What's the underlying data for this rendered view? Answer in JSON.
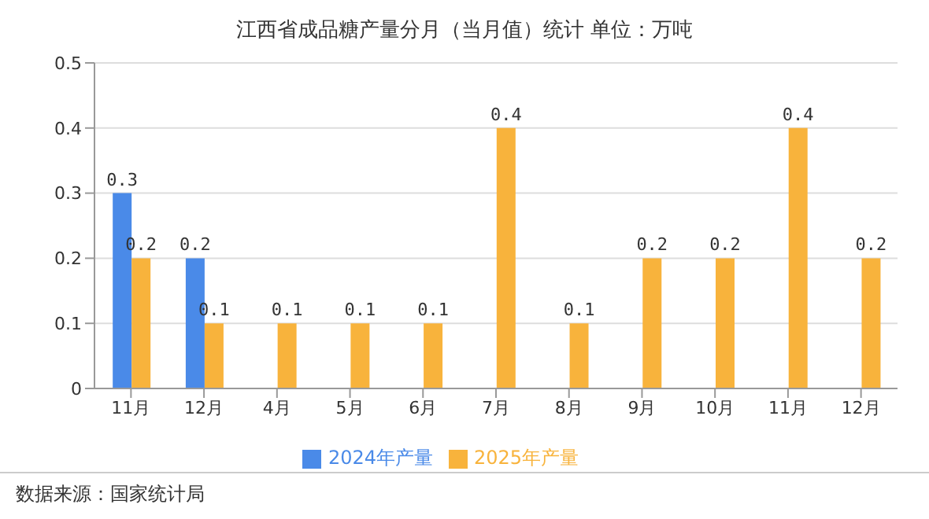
{
  "chart_data": {
    "type": "bar",
    "title": "江西省成品糖产量分月（当月值）统计  单位：万吨",
    "categories": [
      "11月",
      "12月",
      "4月",
      "5月",
      "6月",
      "7月",
      "8月",
      "9月",
      "10月",
      "11月",
      "12月"
    ],
    "series": [
      {
        "name": "2024年产量",
        "color": "#4a8ae8",
        "values": [
          0.3,
          0.2,
          null,
          null,
          null,
          null,
          null,
          null,
          null,
          null,
          null
        ]
      },
      {
        "name": "2025年产量",
        "color": "#f8b33c",
        "values": [
          0.2,
          0.1,
          0.1,
          0.1,
          0.1,
          0.4,
          0.1,
          0.2,
          0.2,
          0.4,
          0.2
        ]
      }
    ],
    "ylim": [
      0,
      0.5
    ],
    "yticks": [
      0,
      0.1,
      0.2,
      0.3,
      0.4,
      0.5
    ],
    "grid": "y",
    "legend": "bottom",
    "data_labels": true,
    "annotations": [
      "数据来源：国家统计局"
    ]
  }
}
